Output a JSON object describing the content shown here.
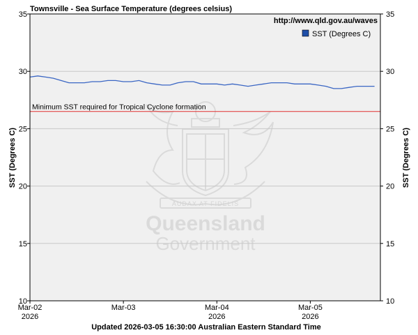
{
  "chart_data": {
    "type": "line",
    "title": "Townsville - Sea Surface Temperature (degrees celsius)",
    "source_url": "http://www.qld.gov.au/waves",
    "ylabel_left": "SST (Degrees C)",
    "ylabel_right": "SST (Degrees C)",
    "ylim": [
      10,
      35
    ],
    "yticks": [
      10,
      15,
      20,
      25,
      30,
      35
    ],
    "xlim": [
      "2026-03-02",
      "2026-03-05T18:00"
    ],
    "xticks": [
      {
        "date": "2026-03-02",
        "line1": "Mar-02",
        "line2": "2026"
      },
      {
        "date": "2026-03-03",
        "line1": "Mar-03",
        "line2": ""
      },
      {
        "date": "2026-03-04",
        "line1": "Mar-04",
        "line2": "2026"
      },
      {
        "date": "2026-03-05",
        "line1": "Mar-05",
        "line2": "2026"
      }
    ],
    "grid": true,
    "legend_position": "top-right",
    "series": [
      {
        "name": "SST (Degrees C)",
        "color": "#3a66c4",
        "legend_swatch_color": "#1f4fa8",
        "points": [
          {
            "x": "2026-03-02T00:00",
            "y": 29.5
          },
          {
            "x": "2026-03-02T02:00",
            "y": 29.6
          },
          {
            "x": "2026-03-02T04:00",
            "y": 29.5
          },
          {
            "x": "2026-03-02T06:00",
            "y": 29.4
          },
          {
            "x": "2026-03-02T08:00",
            "y": 29.2
          },
          {
            "x": "2026-03-02T10:00",
            "y": 29.0
          },
          {
            "x": "2026-03-02T12:00",
            "y": 29.0
          },
          {
            "x": "2026-03-02T14:00",
            "y": 29.0
          },
          {
            "x": "2026-03-02T16:00",
            "y": 29.1
          },
          {
            "x": "2026-03-02T18:00",
            "y": 29.1
          },
          {
            "x": "2026-03-02T20:00",
            "y": 29.2
          },
          {
            "x": "2026-03-02T22:00",
            "y": 29.2
          },
          {
            "x": "2026-03-03T00:00",
            "y": 29.1
          },
          {
            "x": "2026-03-03T02:00",
            "y": 29.1
          },
          {
            "x": "2026-03-03T04:00",
            "y": 29.2
          },
          {
            "x": "2026-03-03T06:00",
            "y": 29.0
          },
          {
            "x": "2026-03-03T08:00",
            "y": 28.9
          },
          {
            "x": "2026-03-03T10:00",
            "y": 28.8
          },
          {
            "x": "2026-03-03T12:00",
            "y": 28.8
          },
          {
            "x": "2026-03-03T14:00",
            "y": 29.0
          },
          {
            "x": "2026-03-03T16:00",
            "y": 29.1
          },
          {
            "x": "2026-03-03T18:00",
            "y": 29.1
          },
          {
            "x": "2026-03-03T20:00",
            "y": 28.9
          },
          {
            "x": "2026-03-03T22:00",
            "y": 28.9
          },
          {
            "x": "2026-03-04T00:00",
            "y": 28.9
          },
          {
            "x": "2026-03-04T02:00",
            "y": 28.8
          },
          {
            "x": "2026-03-04T04:00",
            "y": 28.9
          },
          {
            "x": "2026-03-04T06:00",
            "y": 28.8
          },
          {
            "x": "2026-03-04T08:00",
            "y": 28.7
          },
          {
            "x": "2026-03-04T10:00",
            "y": 28.8
          },
          {
            "x": "2026-03-04T12:00",
            "y": 28.9
          },
          {
            "x": "2026-03-04T14:00",
            "y": 29.0
          },
          {
            "x": "2026-03-04T16:00",
            "y": 29.0
          },
          {
            "x": "2026-03-04T18:00",
            "y": 29.0
          },
          {
            "x": "2026-03-04T20:00",
            "y": 28.9
          },
          {
            "x": "2026-03-04T22:00",
            "y": 28.9
          },
          {
            "x": "2026-03-05T00:00",
            "y": 28.9
          },
          {
            "x": "2026-03-05T02:00",
            "y": 28.8
          },
          {
            "x": "2026-03-05T04:00",
            "y": 28.7
          },
          {
            "x": "2026-03-05T06:00",
            "y": 28.5
          },
          {
            "x": "2026-03-05T08:00",
            "y": 28.5
          },
          {
            "x": "2026-03-05T10:00",
            "y": 28.6
          },
          {
            "x": "2026-03-05T12:00",
            "y": 28.7
          },
          {
            "x": "2026-03-05T14:00",
            "y": 28.7
          },
          {
            "x": "2026-03-05T16:30",
            "y": 28.7
          }
        ]
      }
    ],
    "reference_line": {
      "label": "Minimum SST required for Tropical Cyclone formation",
      "y": 26.5,
      "color": "#e03030"
    },
    "footer": "Updated 2026-03-05 16:30:00 Australian Eastern Standard Time",
    "watermark": {
      "line1": "Queensland",
      "line2": "Government",
      "motto": "AUDAX AT FIDELIS"
    },
    "colors": {
      "plot_bg": "#f0f0f0",
      "grid": "#c8c8c8",
      "page_bg": "#ffffff"
    }
  }
}
